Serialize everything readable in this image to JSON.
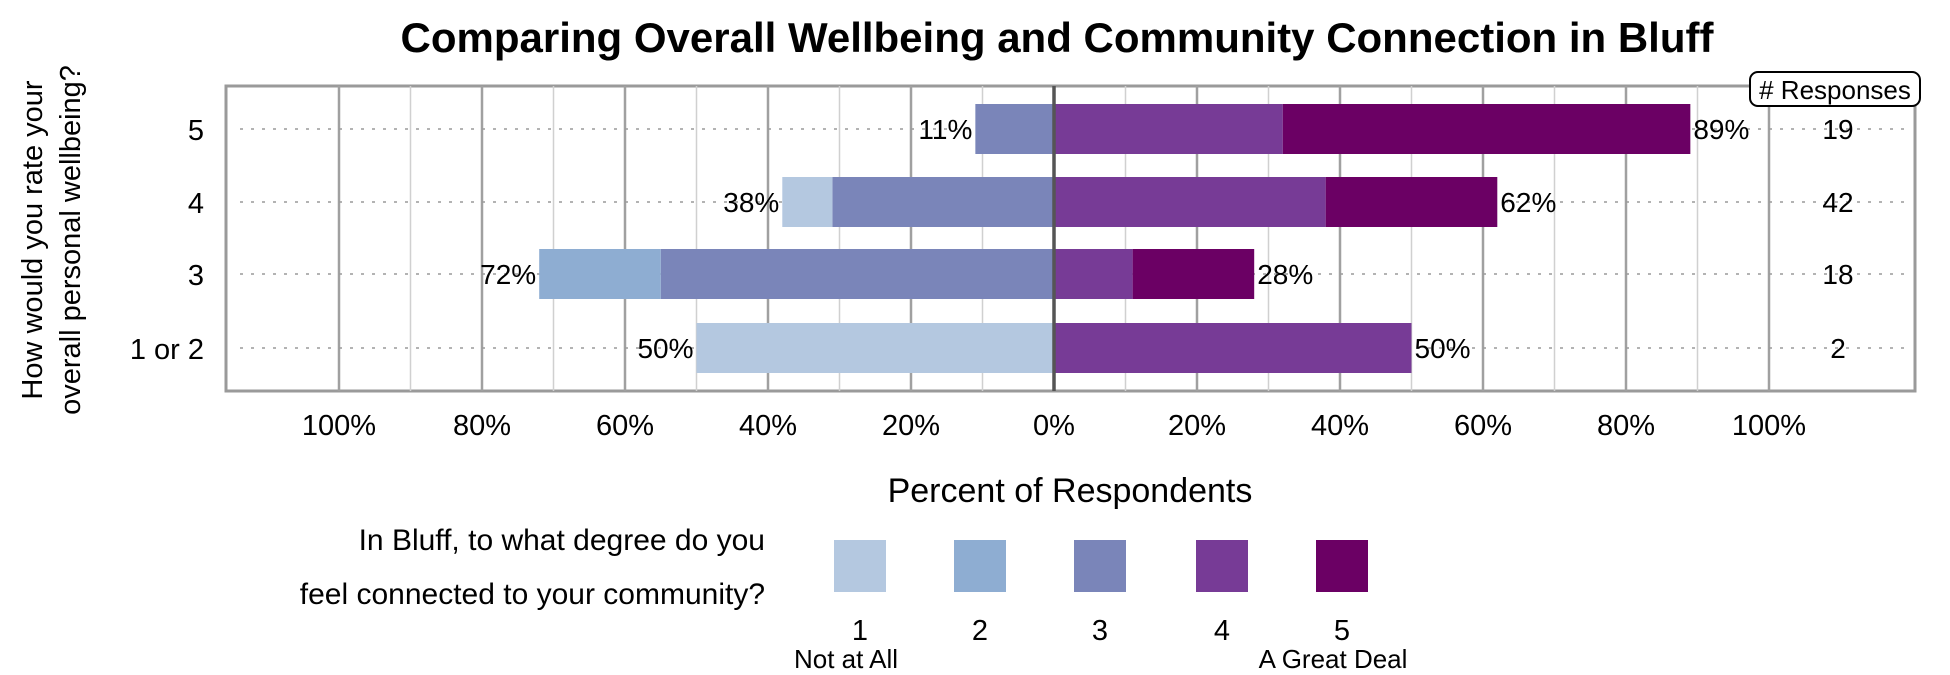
{
  "chart_data": {
    "type": "bar",
    "orientation": "horizontal-diverging",
    "title": "Comparing Overall Wellbeing and Community Connection in Bluff",
    "ylabel": [
      "How would you rate your",
      "overall personal wellbeing?"
    ],
    "xlabel": "Percent of Respondents",
    "xlim": [
      -100,
      100
    ],
    "x_ticks": [
      "100%",
      "80%",
      "60%",
      "40%",
      "20%",
      "0%",
      "20%",
      "40%",
      "60%",
      "80%",
      "100%"
    ],
    "categories": [
      "5",
      "4",
      "3",
      "1 or 2"
    ],
    "series": [
      {
        "name": "1",
        "color": "#b4c8e0",
        "values": [
          0,
          7,
          0,
          50
        ]
      },
      {
        "name": "2",
        "color": "#8eadd2",
        "values": [
          0,
          0,
          17,
          0
        ]
      },
      {
        "name": "3",
        "color": "#7a85b9",
        "values": [
          11,
          31,
          55,
          0
        ]
      },
      {
        "name": "4",
        "color": "#773b96",
        "values": [
          32,
          38,
          11,
          50
        ]
      },
      {
        "name": "5",
        "color": "#6b0064",
        "values": [
          57,
          24,
          17,
          0
        ]
      }
    ],
    "negative_totals": [
      "11%",
      "38%",
      "72%",
      "50%"
    ],
    "positive_totals": [
      "89%",
      "62%",
      "28%",
      "50%"
    ],
    "responses_header": "# Responses",
    "responses": [
      "19",
      "42",
      "18",
      "2"
    ],
    "legend": {
      "question": [
        "In Bluff, to what degree do you",
        "feel connected to your community?"
      ],
      "low_label": "Not at All",
      "high_label": "A Great Deal"
    },
    "grid": true
  }
}
